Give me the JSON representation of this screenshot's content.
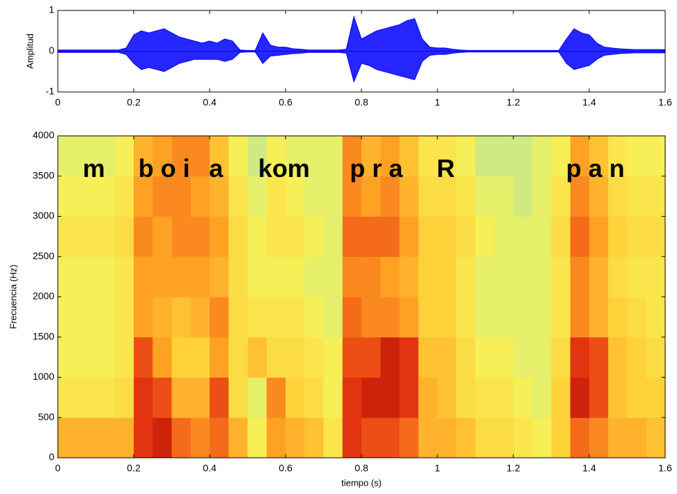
{
  "chart_data": [
    {
      "type": "waveform",
      "ylabel": "Amplitud",
      "x": [
        0,
        0.02,
        0.04,
        0.06,
        0.08,
        0.1,
        0.12,
        0.14,
        0.16,
        0.18,
        0.2,
        0.22,
        0.24,
        0.26,
        0.28,
        0.3,
        0.32,
        0.34,
        0.36,
        0.38,
        0.4,
        0.42,
        0.44,
        0.46,
        0.48,
        0.5,
        0.52,
        0.54,
        0.56,
        0.58,
        0.6,
        0.62,
        0.64,
        0.66,
        0.68,
        0.7,
        0.72,
        0.74,
        0.76,
        0.78,
        0.8,
        0.82,
        0.84,
        0.86,
        0.88,
        0.9,
        0.92,
        0.94,
        0.96,
        0.98,
        1.0,
        1.02,
        1.04,
        1.06,
        1.08,
        1.1,
        1.12,
        1.14,
        1.16,
        1.18,
        1.2,
        1.22,
        1.24,
        1.26,
        1.28,
        1.3,
        1.32,
        1.34,
        1.36,
        1.38,
        1.4,
        1.42,
        1.44,
        1.46,
        1.48,
        1.5,
        1.52,
        1.54,
        1.56,
        1.58,
        1.6
      ],
      "series": [
        {
          "color": "#0000ff",
          "values": [
            0.03,
            0.03,
            0.03,
            0.03,
            0.03,
            0.03,
            0.03,
            0.03,
            0.03,
            0.08,
            0.4,
            0.5,
            0.45,
            0.5,
            0.55,
            0.45,
            0.35,
            0.3,
            0.25,
            0.2,
            0.25,
            0.2,
            0.3,
            0.25,
            0.03,
            0.02,
            0.02,
            0.45,
            0.15,
            0.1,
            0.1,
            0.06,
            0.05,
            0.03,
            0.03,
            0.03,
            0.03,
            0.03,
            0.05,
            0.85,
            0.3,
            0.4,
            0.5,
            0.55,
            0.6,
            0.65,
            0.75,
            0.8,
            0.3,
            0.1,
            0.08,
            0.08,
            0.05,
            0.03,
            0.02,
            0.02,
            0.02,
            0.02,
            0.02,
            0.02,
            0.02,
            0.02,
            0.02,
            0.02,
            0.02,
            0.02,
            0.02,
            0.3,
            0.55,
            0.45,
            0.4,
            0.2,
            0.1,
            0.08,
            0.06,
            0.05,
            0.04,
            0.04,
            0.04,
            0.04,
            0.04
          ]
        },
        {
          "color": "#0000ff",
          "values": [
            -0.03,
            -0.03,
            -0.03,
            -0.03,
            -0.03,
            -0.03,
            -0.03,
            -0.03,
            -0.03,
            -0.08,
            -0.3,
            -0.45,
            -0.4,
            -0.45,
            -0.5,
            -0.4,
            -0.3,
            -0.25,
            -0.2,
            -0.2,
            -0.2,
            -0.2,
            -0.25,
            -0.2,
            -0.03,
            -0.02,
            -0.02,
            -0.3,
            -0.12,
            -0.1,
            -0.08,
            -0.06,
            -0.05,
            -0.03,
            -0.03,
            -0.03,
            -0.03,
            -0.03,
            -0.05,
            -0.75,
            -0.3,
            -0.35,
            -0.45,
            -0.5,
            -0.55,
            -0.6,
            -0.65,
            -0.7,
            -0.25,
            -0.1,
            -0.08,
            -0.08,
            -0.05,
            -0.03,
            -0.02,
            -0.02,
            -0.02,
            -0.02,
            -0.02,
            -0.02,
            -0.02,
            -0.02,
            -0.02,
            -0.02,
            -0.02,
            -0.02,
            -0.02,
            -0.3,
            -0.45,
            -0.4,
            -0.35,
            -0.2,
            -0.1,
            -0.08,
            -0.06,
            -0.05,
            -0.04,
            -0.04,
            -0.04,
            -0.04,
            -0.04
          ]
        }
      ],
      "xlim": [
        0,
        1.6
      ],
      "xticks": [
        0,
        0.2,
        0.4,
        0.6,
        0.8,
        1,
        1.2,
        1.4,
        1.6
      ],
      "ylim": [
        -1,
        1
      ],
      "yticks": [
        -1,
        0,
        1
      ]
    },
    {
      "type": "spectrogram",
      "xlabel": "tiempo (s)",
      "ylabel": "Frecuencia (Hz)",
      "xbins": [
        0,
        0.05,
        0.1,
        0.15,
        0.2,
        0.25,
        0.3,
        0.35,
        0.4,
        0.45,
        0.5,
        0.55,
        0.6,
        0.65,
        0.7,
        0.75,
        0.8,
        0.85,
        0.9,
        0.95,
        1.0,
        1.05,
        1.1,
        1.15,
        1.2,
        1.25,
        1.3,
        1.35,
        1.4,
        1.45,
        1.5,
        1.55,
        1.6
      ],
      "ybins": [
        0,
        500,
        1000,
        1500,
        2000,
        2500,
        3000,
        3500,
        4000
      ],
      "zlim": [
        0,
        1
      ],
      "colormap": [
        "#6fd2d6",
        "#a6e2a8",
        "#f6f25a",
        "#ffd23a",
        "#ff9d22",
        "#e83a12",
        "#a80000"
      ],
      "z": [
        [
          0.6,
          0.6,
          0.6,
          0.6,
          0.85,
          0.9,
          0.75,
          0.7,
          0.75,
          0.6,
          0.35,
          0.65,
          0.6,
          0.55,
          0.4,
          0.85,
          0.8,
          0.8,
          0.75,
          0.6,
          0.6,
          0.55,
          0.45,
          0.45,
          0.4,
          0.35,
          0.5,
          0.75,
          0.7,
          0.6,
          0.6,
          0.55
        ],
        [
          0.4,
          0.4,
          0.4,
          0.45,
          0.85,
          0.8,
          0.6,
          0.6,
          0.8,
          0.45,
          0.3,
          0.7,
          0.5,
          0.45,
          0.35,
          0.85,
          0.9,
          0.9,
          0.85,
          0.6,
          0.55,
          0.45,
          0.4,
          0.4,
          0.35,
          0.3,
          0.5,
          0.9,
          0.8,
          0.55,
          0.5,
          0.5
        ],
        [
          0.35,
          0.35,
          0.35,
          0.4,
          0.8,
          0.65,
          0.5,
          0.5,
          0.65,
          0.45,
          0.55,
          0.45,
          0.45,
          0.4,
          0.35,
          0.8,
          0.8,
          0.9,
          0.85,
          0.55,
          0.55,
          0.45,
          0.35,
          0.35,
          0.3,
          0.3,
          0.45,
          0.85,
          0.8,
          0.55,
          0.5,
          0.45
        ],
        [
          0.35,
          0.35,
          0.35,
          0.4,
          0.65,
          0.6,
          0.55,
          0.6,
          0.7,
          0.45,
          0.4,
          0.4,
          0.4,
          0.35,
          0.3,
          0.75,
          0.7,
          0.7,
          0.65,
          0.5,
          0.5,
          0.4,
          0.3,
          0.3,
          0.3,
          0.3,
          0.4,
          0.7,
          0.6,
          0.5,
          0.45,
          0.4
        ],
        [
          0.35,
          0.35,
          0.35,
          0.4,
          0.65,
          0.65,
          0.65,
          0.65,
          0.6,
          0.45,
          0.35,
          0.35,
          0.35,
          0.3,
          0.3,
          0.7,
          0.7,
          0.65,
          0.6,
          0.5,
          0.5,
          0.4,
          0.3,
          0.3,
          0.3,
          0.3,
          0.4,
          0.7,
          0.6,
          0.45,
          0.4,
          0.4
        ],
        [
          0.4,
          0.4,
          0.4,
          0.45,
          0.7,
          0.65,
          0.7,
          0.7,
          0.65,
          0.45,
          0.35,
          0.4,
          0.4,
          0.35,
          0.3,
          0.75,
          0.75,
          0.75,
          0.65,
          0.5,
          0.5,
          0.45,
          0.35,
          0.3,
          0.3,
          0.3,
          0.45,
          0.75,
          0.65,
          0.5,
          0.45,
          0.45
        ],
        [
          0.35,
          0.35,
          0.35,
          0.4,
          0.65,
          0.7,
          0.7,
          0.65,
          0.6,
          0.4,
          0.3,
          0.4,
          0.35,
          0.3,
          0.3,
          0.7,
          0.65,
          0.7,
          0.6,
          0.45,
          0.45,
          0.4,
          0.3,
          0.3,
          0.25,
          0.3,
          0.4,
          0.7,
          0.6,
          0.45,
          0.4,
          0.4
        ],
        [
          0.3,
          0.3,
          0.3,
          0.35,
          0.6,
          0.65,
          0.7,
          0.7,
          0.55,
          0.35,
          0.25,
          0.35,
          0.3,
          0.3,
          0.3,
          0.7,
          0.6,
          0.65,
          0.55,
          0.4,
          0.4,
          0.35,
          0.25,
          0.25,
          0.25,
          0.3,
          0.35,
          0.65,
          0.55,
          0.4,
          0.35,
          0.35
        ]
      ],
      "annotations": [
        {
          "text": "m",
          "x": 0.095,
          "y": 3570
        },
        {
          "text": "b o i",
          "x": 0.28,
          "y": 3570
        },
        {
          "text": "a",
          "x": 0.417,
          "y": 3570
        },
        {
          "text": "kom",
          "x": 0.596,
          "y": 3570
        },
        {
          "text": "p r a",
          "x": 0.839,
          "y": 3570
        },
        {
          "text": "R",
          "x": 1.022,
          "y": 3570
        },
        {
          "text": "p a n",
          "x": 1.416,
          "y": 3570
        }
      ],
      "xlim": [
        0,
        1.6
      ],
      "xticks": [
        0,
        0.2,
        0.4,
        0.6,
        0.8,
        1,
        1.2,
        1.4,
        1.6
      ],
      "ylim": [
        0,
        4000
      ],
      "yticks": [
        0,
        500,
        1000,
        1500,
        2000,
        2500,
        3000,
        3500,
        4000
      ]
    }
  ]
}
